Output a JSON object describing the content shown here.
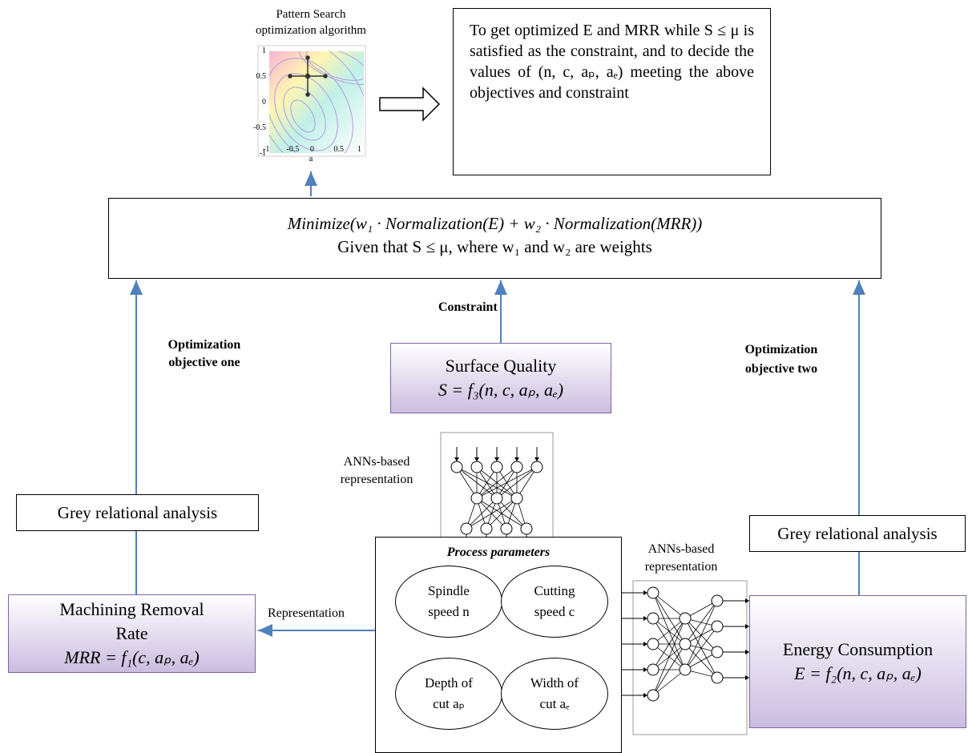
{
  "pattern_search": {
    "title": [
      "Pattern Search",
      "optimization algorithm"
    ],
    "yticks": [
      "1",
      "0.5",
      "0",
      "-0.5",
      "-1"
    ],
    "xticks": [
      "-1",
      "-0.5",
      "0",
      "0.5",
      "1"
    ],
    "xlabel": "a"
  },
  "objective_box": {
    "text": "To get optimized E and MRR while S ≤ μ is satisfied as the constraint, and to decide the values of (n, c, aₚ, aₑ) meeting the above objectives and constraint"
  },
  "formula_box": {
    "lines": [
      "Minimize(w₁ · Normalization(E) + w₂ · Normalization(MRR))",
      "Given that S ≤ μ, where w₁  and w₂ are weights"
    ]
  },
  "labels": {
    "constraint": "Constraint",
    "objective_one": [
      "Optimization",
      "objective one"
    ],
    "objective_two": [
      "Optimization",
      "objective two"
    ],
    "representation": "Representation",
    "ann_left": [
      "ANNs-based",
      "representation"
    ],
    "ann_right": [
      "ANNs-based",
      "representation"
    ]
  },
  "surface_quality": {
    "title": "Surface Quality",
    "formula": "S = f₃(n, c, aₚ, aₑ)"
  },
  "grey_left": "Grey relational analysis",
  "grey_right": "Grey relational analysis",
  "process_parameters": {
    "title": "Process parameters",
    "items": [
      [
        "Spindle",
        "speed n"
      ],
      [
        "Cutting",
        "speed c"
      ],
      [
        "Depth of",
        "cut aₚ"
      ],
      [
        "Width of",
        "cut aₑ"
      ]
    ]
  },
  "mrr": {
    "title": [
      "Machining Removal",
      "Rate"
    ],
    "formula": "MRR =  f₁(c, aₚ, aₑ)"
  },
  "energy": {
    "title": "Energy Consumption",
    "formula": "E = f₂(n, c, aₚ, aₑ)"
  }
}
